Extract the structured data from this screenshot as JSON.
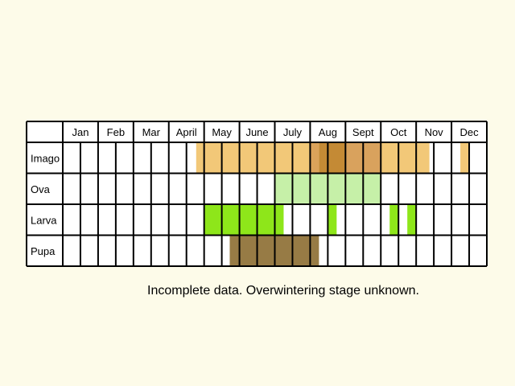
{
  "chart_data": {
    "type": "table",
    "months": [
      "Jan",
      "Feb",
      "Mar",
      "April",
      "May",
      "June",
      "July",
      "Aug",
      "Sept",
      "Oct",
      "Nov",
      "Dec"
    ],
    "cells_per_month": 2,
    "stages": [
      {
        "name": "Imago",
        "segments": [
          {
            "from": 7.55,
            "to": 8.0,
            "color": "#f2c878"
          },
          {
            "from": 8.0,
            "to": 14.0,
            "color": "#f2c878"
          },
          {
            "from": 14.0,
            "to": 14.5,
            "color": "#dba25a"
          },
          {
            "from": 14.5,
            "to": 16.0,
            "color": "#c48a35"
          },
          {
            "from": 16.0,
            "to": 18.0,
            "color": "#d9a25d"
          },
          {
            "from": 18.0,
            "to": 20.75,
            "color": "#f2c878"
          },
          {
            "from": 22.5,
            "to": 23.0,
            "color": "#f2c878"
          }
        ]
      },
      {
        "name": "Ova",
        "segments": [
          {
            "from": 12.0,
            "to": 18.0,
            "color": "#c6f0a8"
          }
        ]
      },
      {
        "name": "Larva",
        "segments": [
          {
            "from": 8.0,
            "to": 12.5,
            "color": "#8ee61a"
          },
          {
            "from": 15.0,
            "to": 15.5,
            "color": "#8ee61a"
          },
          {
            "from": 18.5,
            "to": 19.0,
            "color": "#8ee61a"
          },
          {
            "from": 19.5,
            "to": 20.0,
            "color": "#8ee61a"
          }
        ]
      },
      {
        "name": "Pupa",
        "segments": [
          {
            "from": 9.45,
            "to": 14.5,
            "color": "#977b45"
          }
        ]
      }
    ]
  },
  "note": "Incomplete data. Overwintering stage unknown."
}
